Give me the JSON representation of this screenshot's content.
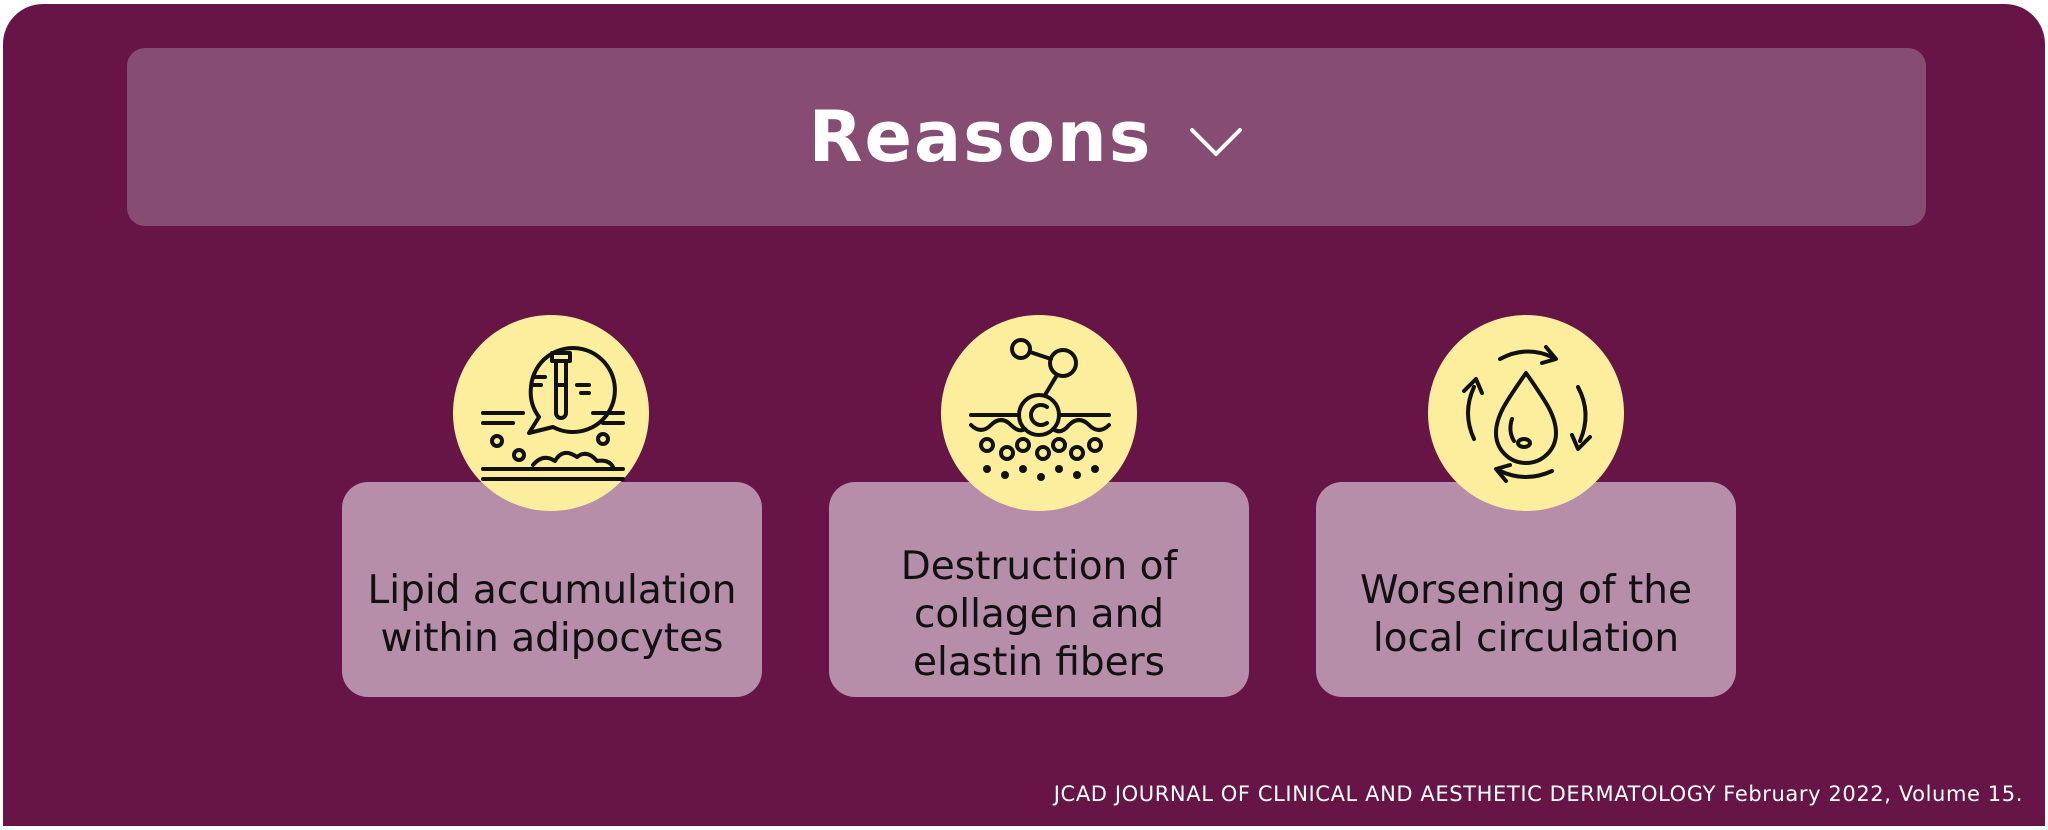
{
  "header": {
    "title": "Reasons",
    "chevron_icon": "chevron-down-icon"
  },
  "reasons": [
    {
      "label": "Lipid accumulation\nwithin adipocytes",
      "icon": "lipid-test-tube-icon"
    },
    {
      "label": "Destruction of\ncollagen and\nelastin fibers",
      "icon": "collagen-molecule-icon"
    },
    {
      "label": "Worsening  of the\nlocal circulation",
      "icon": "circulation-drop-icon"
    }
  ],
  "footer": {
    "citation": "JCAD JOURNAL OF CLINICAL AND AESTHETIC DERMATOLOGY February 2022, Volume 15."
  },
  "colors": {
    "background": "#661546",
    "header": "#874C71",
    "card": "#B68EA9",
    "icon_circle": "#FDEE9D"
  }
}
